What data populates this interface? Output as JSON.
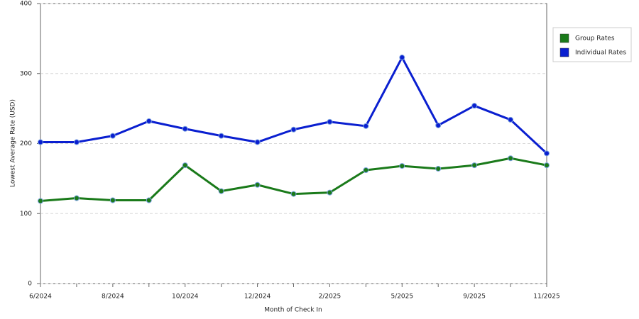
{
  "chart_data": {
    "type": "line",
    "x_label": "Month of Check In",
    "y_label": "Lowest Average Rate (USD)",
    "categories": [
      "6/2024",
      null,
      "8/2024",
      null,
      "10/2024",
      null,
      "12/2024",
      null,
      "2/2025",
      null,
      "5/2025",
      null,
      "9/2025",
      null,
      "11/2025"
    ],
    "series": [
      {
        "name": "Group Rates",
        "color": "#1a7a1a",
        "values": [
          118,
          122,
          119,
          119,
          169,
          132,
          141,
          128,
          130,
          162,
          168,
          164,
          169,
          179,
          169
        ]
      },
      {
        "name": "Individual Rates",
        "color": "#0a1fd0",
        "values": [
          202,
          202,
          211,
          232,
          221,
          211,
          202,
          220,
          231,
          225,
          323,
          226,
          254,
          234,
          186
        ]
      }
    ],
    "ylim": [
      0,
      400
    ],
    "yticks": [
      0,
      100,
      200,
      300,
      400
    ],
    "grid": true,
    "legend": "right"
  }
}
